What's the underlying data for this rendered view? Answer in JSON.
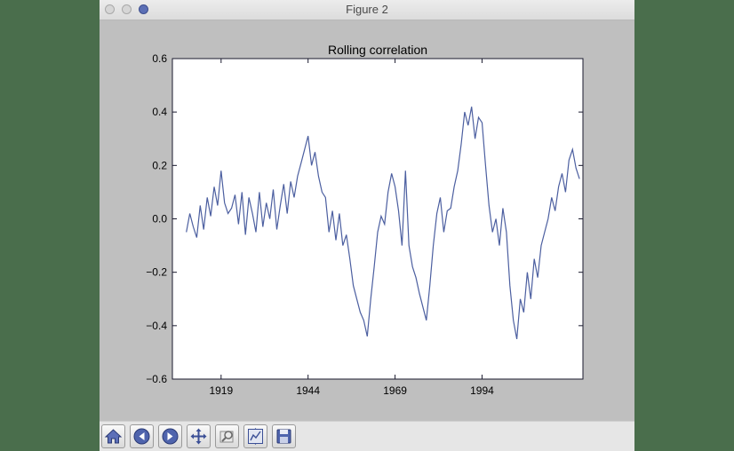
{
  "window": {
    "title": "Figure 2"
  },
  "toolbar": {
    "buttons": [
      {
        "name": "home-button",
        "icon": "home-icon"
      },
      {
        "name": "back-button",
        "icon": "back-arrow-icon"
      },
      {
        "name": "forward-button",
        "icon": "forward-arrow-icon"
      },
      {
        "name": "pan-button",
        "icon": "move-icon"
      },
      {
        "name": "zoom-button",
        "icon": "zoom-rect-icon"
      },
      {
        "name": "subplots-button",
        "icon": "subplots-icon"
      },
      {
        "name": "save-button",
        "icon": "save-icon"
      }
    ]
  },
  "colors": {
    "line": "#4c5fa0",
    "window_bg": "#bfbfbf",
    "desktop": "#4a6e4c"
  },
  "chart_data": {
    "type": "line",
    "title": "Rolling correlation",
    "xlabel": "",
    "ylabel": "",
    "xlim": [
      1905,
      2023
    ],
    "ylim": [
      -0.6,
      0.6
    ],
    "xticks": [
      1919,
      1944,
      1969,
      1994
    ],
    "yticks": [
      -0.6,
      -0.4,
      -0.2,
      0.0,
      0.2,
      0.4,
      0.6
    ],
    "ytick_labels": [
      "−0.6",
      "−0.4",
      "−0.2",
      "0.0",
      "0.2",
      "0.4",
      "0.6"
    ],
    "grid": false,
    "series": [
      {
        "x": [
          1909,
          1910,
          1911,
          1912,
          1913,
          1914,
          1915,
          1916,
          1917,
          1918,
          1919,
          1920,
          1921,
          1922,
          1923,
          1924,
          1925,
          1926,
          1927,
          1928,
          1929,
          1930,
          1931,
          1932,
          1933,
          1934,
          1935,
          1936,
          1937,
          1938,
          1939,
          1940,
          1941,
          1942,
          1943,
          1944,
          1945,
          1946,
          1947,
          1948,
          1949,
          1950,
          1951,
          1952,
          1953,
          1954,
          1955,
          1956,
          1957,
          1958,
          1959,
          1960,
          1961,
          1962,
          1963,
          1964,
          1965,
          1966,
          1967,
          1968,
          1969,
          1970,
          1971,
          1972,
          1973,
          1974,
          1975,
          1976,
          1977,
          1978,
          1979,
          1980,
          1981,
          1982,
          1983,
          1984,
          1985,
          1986,
          1987,
          1988,
          1989,
          1990,
          1991,
          1992,
          1993,
          1994,
          1995,
          1996,
          1997,
          1998,
          1999,
          2000,
          2001,
          2002,
          2003,
          2004,
          2005,
          2006,
          2007,
          2008,
          2009,
          2010,
          2011,
          2012,
          2013,
          2014,
          2015,
          2016,
          2017,
          2018,
          2019,
          2020,
          2021,
          2022
        ],
        "y": [
          -0.05,
          0.02,
          -0.03,
          -0.07,
          0.05,
          -0.04,
          0.08,
          0.01,
          0.12,
          0.05,
          0.18,
          0.06,
          0.02,
          0.04,
          0.09,
          -0.02,
          0.1,
          -0.06,
          0.08,
          0.02,
          -0.05,
          0.1,
          -0.03,
          0.06,
          0.0,
          0.11,
          -0.04,
          0.05,
          0.13,
          0.02,
          0.14,
          0.08,
          0.16,
          0.21,
          0.26,
          0.31,
          0.2,
          0.25,
          0.16,
          0.1,
          0.08,
          -0.05,
          0.03,
          -0.08,
          0.02,
          -0.1,
          -0.06,
          -0.15,
          -0.25,
          -0.3,
          -0.35,
          -0.38,
          -0.44,
          -0.3,
          -0.18,
          -0.05,
          0.01,
          -0.02,
          0.1,
          0.17,
          0.12,
          0.03,
          -0.1,
          0.18,
          -0.1,
          -0.18,
          -0.22,
          -0.28,
          -0.33,
          -0.38,
          -0.25,
          -0.1,
          0.02,
          0.08,
          -0.05,
          0.03,
          0.04,
          0.12,
          0.18,
          0.28,
          0.4,
          0.35,
          0.42,
          0.3,
          0.38,
          0.36,
          0.2,
          0.05,
          -0.05,
          0.0,
          -0.1,
          0.04,
          -0.05,
          -0.25,
          -0.38,
          -0.45,
          -0.3,
          -0.35,
          -0.2,
          -0.3,
          -0.15,
          -0.22,
          -0.1,
          -0.05,
          0.0,
          0.08,
          0.03,
          0.12,
          0.17,
          0.1,
          0.22,
          0.26,
          0.19,
          0.15
        ]
      }
    ]
  }
}
